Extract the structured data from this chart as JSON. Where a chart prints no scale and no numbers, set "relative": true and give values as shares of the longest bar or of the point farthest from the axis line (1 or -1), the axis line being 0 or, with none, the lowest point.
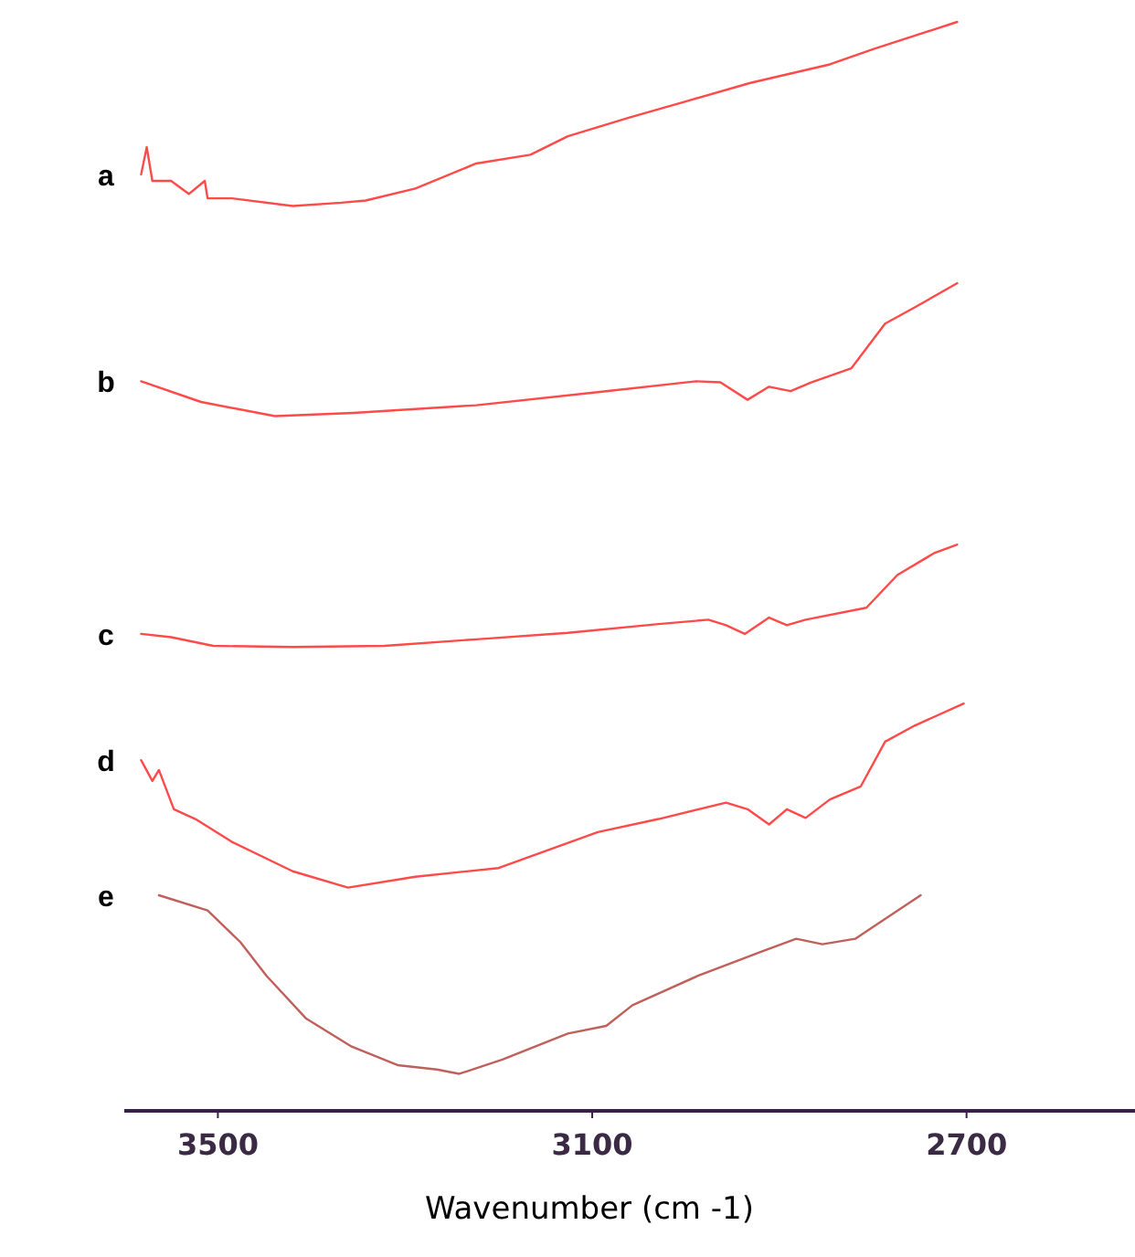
{
  "chart_data": {
    "type": "line",
    "xlabel": "Wavenumber (cm -1)",
    "relative": true,
    "xlim": [
      3600,
      2520
    ],
    "xticks": [
      3500,
      3100,
      2700
    ],
    "tick_labels": "x",
    "series": [
      {
        "name": "a",
        "color": "#ff4a4a",
        "x": [
          3582,
          3576,
          3570,
          3550,
          3531,
          3514,
          3511,
          3485,
          3420,
          3368,
          3342,
          3289,
          3224,
          3166,
          3126,
          3061,
          2996,
          2931,
          2846,
          2800,
          2710
        ],
        "values": [
          0.86,
          0.885,
          0.854,
          0.854,
          0.842,
          0.854,
          0.838,
          0.838,
          0.831,
          0.834,
          0.836,
          0.847,
          0.87,
          0.878,
          0.895,
          0.912,
          0.928,
          0.944,
          0.961,
          0.975,
          1
        ]
      },
      {
        "name": "b",
        "color": "#ff4a4a",
        "x": [
          3582,
          3518,
          3439,
          3355,
          3224,
          3094,
          2989,
          2963,
          2934,
          2911,
          2888,
          2866,
          2823,
          2787,
          2755,
          2710
        ],
        "values": [
          0.67,
          0.651,
          0.638,
          0.641,
          0.648,
          0.66,
          0.67,
          0.669,
          0.653,
          0.665,
          0.661,
          0.669,
          0.682,
          0.723,
          0.738,
          0.76
        ]
      },
      {
        "name": "c",
        "color": "#ff4a4a",
        "x": [
          3582,
          3550,
          3505,
          3420,
          3322,
          3224,
          3126,
          3029,
          2976,
          2957,
          2937,
          2911,
          2892,
          2872,
          2807,
          2774,
          2735,
          2710
        ],
        "values": [
          0.438,
          0.435,
          0.427,
          0.426,
          0.427,
          0.433,
          0.439,
          0.447,
          0.451,
          0.446,
          0.438,
          0.453,
          0.446,
          0.451,
          0.462,
          0.492,
          0.512,
          0.52
        ]
      },
      {
        "name": "d",
        "color": "#ff4a4a",
        "x": [
          3582,
          3570,
          3563,
          3547,
          3524,
          3485,
          3420,
          3361,
          3289,
          3200,
          3094,
          3029,
          2957,
          2934,
          2911,
          2892,
          2872,
          2846,
          2813,
          2787,
          2755,
          2703
        ],
        "values": [
          0.322,
          0.303,
          0.313,
          0.277,
          0.268,
          0.247,
          0.22,
          0.205,
          0.215,
          0.223,
          0.256,
          0.268,
          0.283,
          0.277,
          0.263,
          0.277,
          0.269,
          0.286,
          0.298,
          0.339,
          0.354,
          0.374
        ]
      },
      {
        "name": "e",
        "color": "#c0605a",
        "x": [
          3563,
          3511,
          3476,
          3448,
          3406,
          3357,
          3308,
          3266,
          3242,
          3196,
          3126,
          3085,
          3057,
          2987,
          2917,
          2882,
          2854,
          2819,
          2749
        ],
        "values": [
          0.198,
          0.184,
          0.155,
          0.124,
          0.085,
          0.059,
          0.042,
          0.038,
          0.034,
          0.047,
          0.071,
          0.078,
          0.097,
          0.124,
          0.147,
          0.158,
          0.153,
          0.158,
          0.198
        ]
      }
    ]
  }
}
